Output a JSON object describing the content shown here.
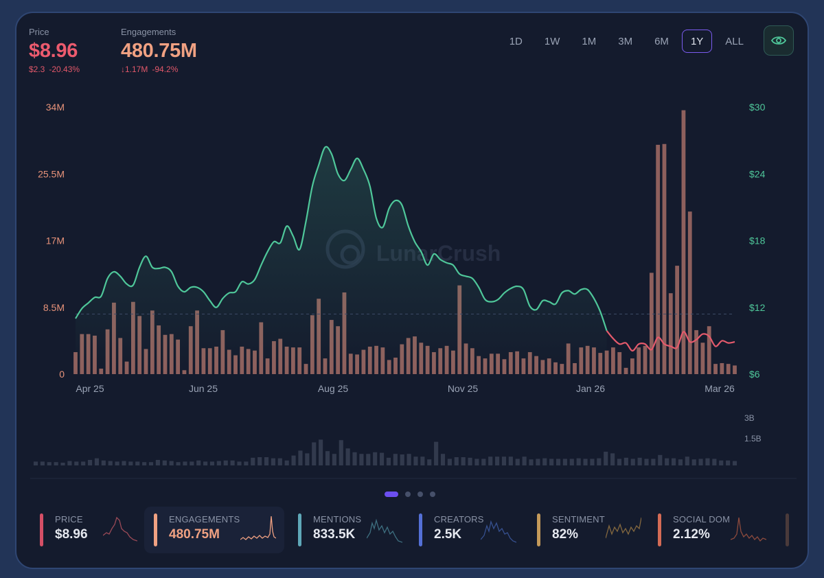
{
  "stats": {
    "price": {
      "label": "Price",
      "value": "$8.96",
      "change_abs": "$2.3",
      "change_pct": "-20.43%"
    },
    "engagements": {
      "label": "Engagements",
      "value": "480.75M",
      "change_abs": "↓1.17M",
      "change_pct": "-94.2%"
    }
  },
  "time_ranges": [
    "1D",
    "1W",
    "1M",
    "3M",
    "6M",
    "1Y",
    "ALL"
  ],
  "active_range": "1Y",
  "watermark": "LunarCrush",
  "colors": {
    "price_up": "#4fc79a",
    "price_down": "#e55a6c",
    "bars": "#a36c66",
    "accent": "#7b5cf0",
    "background": "#141b2d"
  },
  "chart_data": {
    "type": "bar+line",
    "x_ticks": [
      "Apr 25",
      "Jun 25",
      "Aug 25",
      "Nov 25",
      "Jan 26",
      "Mar 26"
    ],
    "left_axis_ticks": [
      "34M",
      "25.5M",
      "17M",
      "8.5M",
      "0"
    ],
    "right_axis_ticks": [
      "$30",
      "$24",
      "$18",
      "$12",
      "$6"
    ],
    "left_ylim": [
      0,
      34000000
    ],
    "right_ylim": [
      6,
      30
    ],
    "series": [
      {
        "name": "Engagements",
        "axis": "left",
        "values": [
          2.8,
          5.1,
          5.1,
          4.9,
          0.7,
          5.7,
          9.1,
          4.6,
          1.6,
          9.2,
          7.4,
          3.2,
          8.1,
          6.2,
          5.0,
          5.1,
          4.4,
          0.5,
          6.1,
          8.1,
          3.3,
          3.3,
          3.5,
          5.6,
          3.1,
          2.4,
          3.5,
          3.2,
          3.0,
          6.6,
          2.0,
          4.2,
          4.5,
          3.5,
          3.4,
          3.4,
          1.3,
          7.5,
          9.6,
          2.0,
          6.9,
          6.1,
          10.4,
          2.6,
          2.5,
          3.1,
          3.5,
          3.6,
          3.4,
          1.8,
          2.1,
          3.8,
          4.6,
          4.8,
          4.0,
          3.6,
          2.8,
          3.3,
          3.6,
          3.0,
          11.3,
          3.9,
          3.3,
          2.3,
          2.0,
          2.6,
          2.6,
          1.9,
          2.8,
          2.9,
          2.0,
          2.8,
          2.3,
          1.8,
          2.0,
          1.5,
          1.3,
          3.9,
          1.4,
          3.4,
          3.6,
          3.4,
          2.7,
          3.0,
          3.4,
          2.8,
          0.8,
          2.0,
          3.4,
          3.6,
          12.9,
          29.2,
          29.3,
          10.3,
          13.8,
          33.6,
          20.7,
          5.6,
          4.0,
          6.1,
          1.3,
          1.4,
          1.3,
          1.1
        ]
      },
      {
        "name": "Price",
        "axis": "right",
        "values": [
          11.0,
          11.9,
          12.4,
          12.9,
          13.0,
          14.6,
          15.2,
          14.8,
          14.1,
          14.0,
          15.6,
          16.6,
          15.6,
          15.5,
          15.6,
          15.2,
          13.9,
          13.4,
          13.8,
          13.8,
          13.4,
          12.6,
          12.0,
          12.8,
          13.3,
          13.4,
          14.3,
          14.1,
          14.5,
          15.8,
          17.0,
          17.9,
          17.8,
          19.3,
          18.4,
          17.2,
          19.7,
          22.9,
          24.8,
          26.4,
          25.8,
          24.0,
          23.4,
          24.4,
          25.4,
          24.4,
          22.9,
          20.0,
          19.2,
          20.9,
          21.6,
          21.2,
          19.3,
          17.9,
          17.0,
          15.8,
          16.8,
          16.3,
          16.0,
          15.8,
          15.0,
          14.8,
          14.6,
          13.8,
          12.7,
          12.5,
          12.7,
          13.3,
          13.7,
          13.9,
          13.6,
          12.1,
          11.8,
          12.6,
          12.5,
          12.3,
          13.3,
          13.5,
          13.2,
          13.6,
          13.6,
          12.8,
          11.6,
          9.9,
          9.2,
          8.7,
          8.8,
          8.1,
          8.7,
          8.7,
          8.2,
          9.3,
          8.7,
          8.5,
          8.4,
          9.8,
          8.9,
          9.1,
          9.6,
          9.4,
          8.5,
          9.0,
          8.8,
          8.9
        ]
      }
    ],
    "reference_price": 11.4,
    "volume_axis_ticks": [
      "3B",
      "1.5B"
    ],
    "volume_values": [
      0.35,
      0.35,
      0.3,
      0.3,
      0.25,
      0.4,
      0.35,
      0.35,
      0.5,
      0.65,
      0.45,
      0.4,
      0.35,
      0.4,
      0.35,
      0.35,
      0.3,
      0.3,
      0.5,
      0.45,
      0.4,
      0.3,
      0.35,
      0.35,
      0.45,
      0.35,
      0.35,
      0.4,
      0.45,
      0.45,
      0.35,
      0.35,
      0.7,
      0.75,
      0.75,
      0.65,
      0.65,
      0.45,
      0.9,
      1.35,
      1.1,
      2.1,
      2.35,
      1.3,
      1.05,
      2.3,
      1.55,
      1.2,
      1.05,
      1.05,
      1.2,
      1.15,
      0.7,
      1.05,
      1.0,
      1.05,
      0.8,
      0.8,
      0.55,
      2.15,
      1.05,
      0.6,
      0.75,
      0.75,
      0.7,
      0.6,
      0.6,
      0.8,
      0.8,
      0.8,
      0.8,
      0.6,
      0.8,
      0.55,
      0.6,
      0.65,
      0.6,
      0.6,
      0.6,
      0.6,
      0.65,
      0.6,
      0.6,
      0.65,
      1.25,
      1.1,
      0.6,
      0.7,
      0.6,
      0.7,
      0.6,
      0.6,
      0.95,
      0.65,
      0.65,
      0.55,
      0.8,
      0.55,
      0.6,
      0.65,
      0.6,
      0.45,
      0.45,
      0.4
    ]
  },
  "pagination": {
    "pages": 4,
    "active": 0
  },
  "metrics": [
    {
      "label": "PRICE",
      "value": "$8.96",
      "color": "#d44f66"
    },
    {
      "label": "ENGAGEMENTS",
      "value": "480.75M",
      "color": "#f0a182"
    },
    {
      "label": "MENTIONS",
      "value": "833.5K",
      "color": "#5fa8b8"
    },
    {
      "label": "CREATORS",
      "value": "2.5K",
      "color": "#5470d6"
    },
    {
      "label": "SENTIMENT",
      "value": "82%",
      "color": "#c49a5a"
    },
    {
      "label": "SOCIAL DOM",
      "value": "2.12%",
      "color": "#d46b55"
    }
  ]
}
